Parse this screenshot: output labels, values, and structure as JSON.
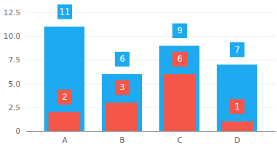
{
  "chart_data": {
    "type": "bar",
    "categories": [
      "A",
      "B",
      "C",
      "D"
    ],
    "series": [
      {
        "color": "#1eaaf1",
        "values": [
          11,
          6,
          9,
          7
        ]
      },
      {
        "color": "#f4564a",
        "values": [
          2,
          3,
          6,
          1
        ]
      }
    ],
    "ylim": [
      0,
      12.5
    ],
    "yticks": [
      0,
      2.5,
      {
        "value": 5,
        "label": "5.0"
      },
      7.5,
      {
        "value": 10,
        "label": "10.0"
      },
      12.5
    ],
    "grid": true,
    "data_labels": true
  }
}
